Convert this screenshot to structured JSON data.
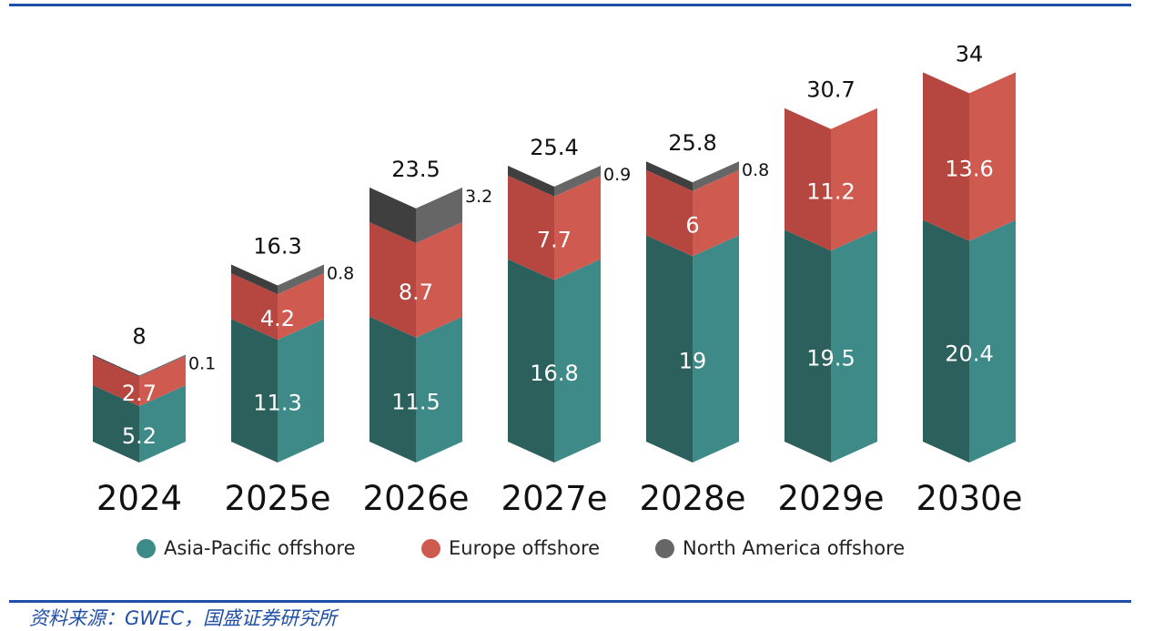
{
  "chart_data": {
    "type": "bar",
    "stacked": true,
    "title": "",
    "xlabel": "",
    "ylabel": "",
    "categories": [
      "2024",
      "2025e",
      "2026e",
      "2027e",
      "2028e",
      "2029e",
      "2030e"
    ],
    "series": [
      {
        "name": "Asia-Pacific offshore",
        "values": [
          5.2,
          11.3,
          11.5,
          16.8,
          19,
          19.5,
          20.4
        ],
        "color": "#3e8a88",
        "color_dark": "#2c605c"
      },
      {
        "name": "Europe offshore",
        "values": [
          2.7,
          4.2,
          8.7,
          7.7,
          6,
          11.2,
          13.6
        ],
        "color": "#cf5b50",
        "color_dark": "#b64740"
      },
      {
        "name": "North America offshore",
        "values": [
          0.1,
          0.8,
          3.2,
          0.9,
          0.8,
          null,
          null
        ],
        "color": "#666666",
        "color_dark": "#3f3f3f"
      }
    ],
    "segment_labels": [
      [
        "5.2",
        "11.3",
        "11.5",
        "16.8",
        "19",
        "19.5",
        "20.4"
      ],
      [
        "2.7",
        "4.2",
        "8.7",
        "7.7",
        "6",
        "11.2",
        "13.6"
      ],
      [
        "0.1",
        "0.8",
        "3.2",
        "0.9",
        "0.8",
        "",
        ""
      ]
    ],
    "totals": [
      8,
      16.3,
      23.5,
      25.4,
      25.8,
      30.7,
      34
    ],
    "total_labels": [
      "8",
      "16.3",
      "23.5",
      "25.4",
      "25.8",
      "30.7",
      "34"
    ],
    "ylim": [
      0,
      34
    ],
    "grid": false,
    "legend": "bottom"
  },
  "legend": [
    {
      "label": "Asia-Pacific offshore",
      "color": "#3e8a88"
    },
    {
      "label": "Europe offshore",
      "color": "#cf5b50"
    },
    {
      "label": "North America offshore",
      "color": "#666666"
    }
  ],
  "source": "资料来源：GWEC，国盛证券研究所",
  "colors": {
    "rule": "#1f4fa8"
  }
}
